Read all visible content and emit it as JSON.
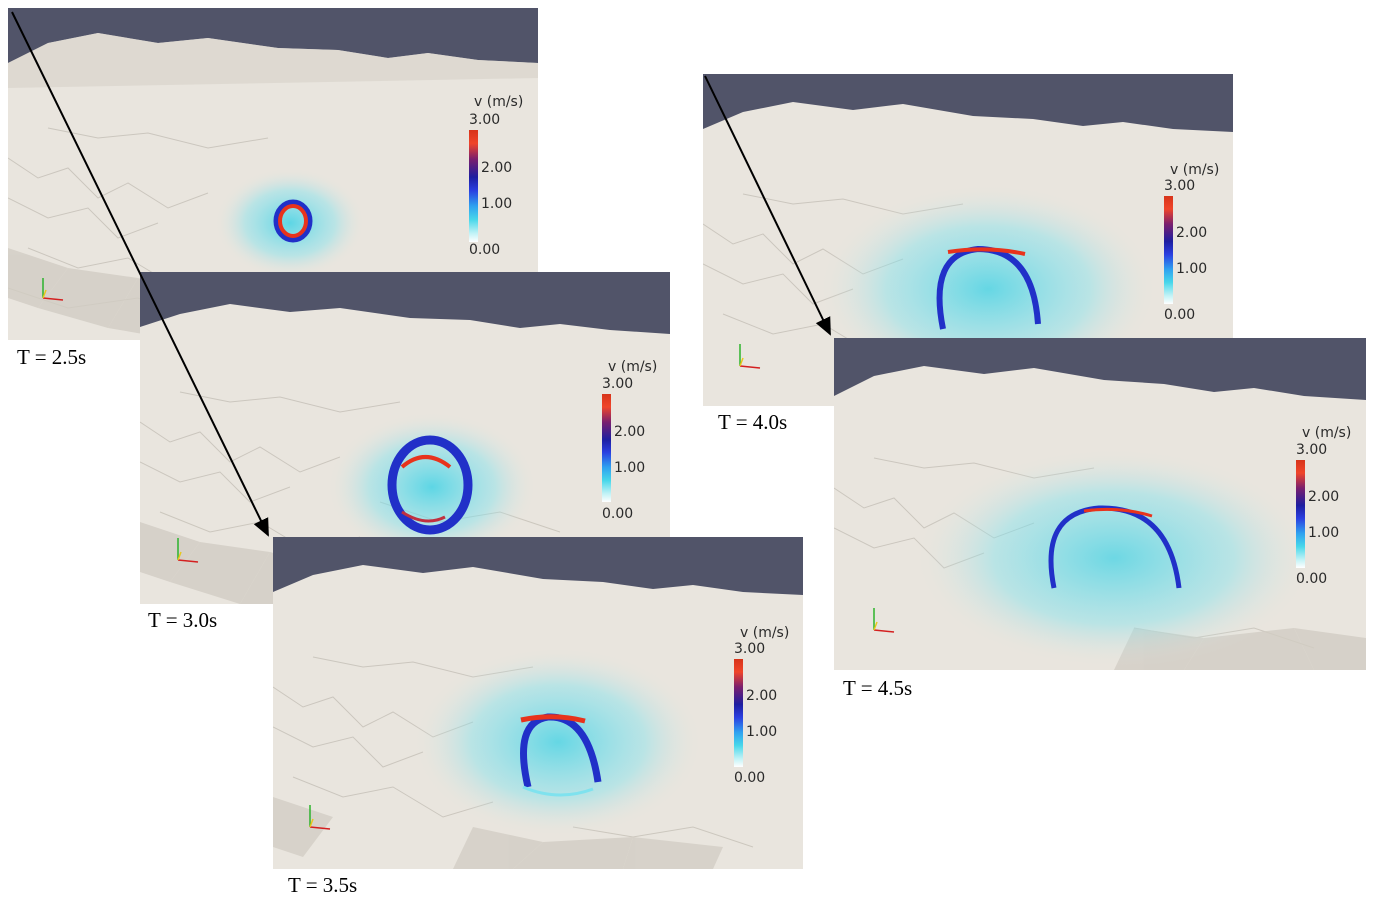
{
  "colorbar": {
    "title": "v (m/s)",
    "ticks": [
      "3.00",
      "2.00",
      "1.00",
      "0.00"
    ],
    "range": [
      0,
      3
    ]
  },
  "panels": [
    {
      "id": "p1",
      "caption": "T = 2.5s"
    },
    {
      "id": "p2",
      "caption": "T = 3.0s"
    },
    {
      "id": "p3",
      "caption": "T = 3.5s"
    },
    {
      "id": "p4",
      "caption": "T = 4.0s"
    },
    {
      "id": "p5",
      "caption": "T = 4.5s"
    }
  ],
  "colors": {
    "sky": "#515469",
    "terrain": "#e9e5de",
    "wave_high": "#e8331c",
    "wave_mid": "#2130c8",
    "wave_low": "#44d3e6"
  }
}
